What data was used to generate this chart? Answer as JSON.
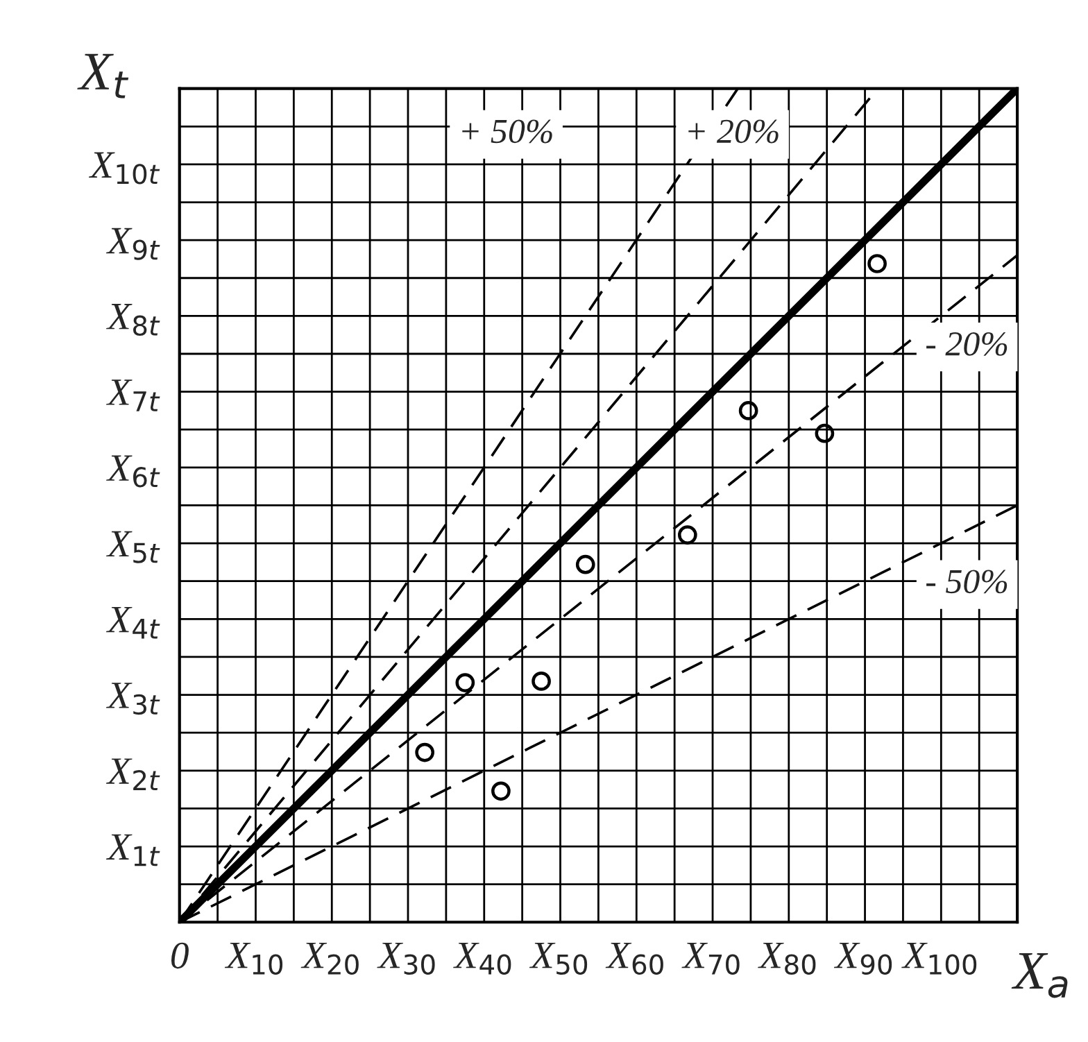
{
  "chart_data": {
    "type": "scatter",
    "xlabel": "X$_{a}$",
    "ylabel": "X$_{t}$",
    "xlim": [
      0,
      110
    ],
    "ylim": [
      0,
      11
    ],
    "xticks": [
      {
        "value": 0,
        "label": "0"
      },
      {
        "value": 5,
        "label": null
      },
      {
        "value": 10,
        "label": "X$_{10}$"
      },
      {
        "value": 15,
        "label": null
      },
      {
        "value": 20,
        "label": "X$_{20}$"
      },
      {
        "value": 25,
        "label": null
      },
      {
        "value": 30,
        "label": "X$_{30}$"
      },
      {
        "value": 35,
        "label": null
      },
      {
        "value": 40,
        "label": "X$_{40}$"
      },
      {
        "value": 45,
        "label": null
      },
      {
        "value": 50,
        "label": "X$_{50}$"
      },
      {
        "value": 55,
        "label": null
      },
      {
        "value": 60,
        "label": "X$_{60}$"
      },
      {
        "value": 65,
        "label": null
      },
      {
        "value": 70,
        "label": "X$_{70}$"
      },
      {
        "value": 75,
        "label": null
      },
      {
        "value": 80,
        "label": "X$_{80}$"
      },
      {
        "value": 85,
        "label": null
      },
      {
        "value": 90,
        "label": "X$_{90}$"
      },
      {
        "value": 95,
        "label": null
      },
      {
        "value": 100,
        "label": "X$_{100}$"
      },
      {
        "value": 105,
        "label": null
      }
    ],
    "yticks": [
      {
        "value": 0.5,
        "label": null
      },
      {
        "value": 1,
        "label": "X$_{1t}$"
      },
      {
        "value": 1.5,
        "label": null
      },
      {
        "value": 2,
        "label": "X$_{2t}$"
      },
      {
        "value": 2.5,
        "label": null
      },
      {
        "value": 3,
        "label": "X$_{3t}$"
      },
      {
        "value": 3.5,
        "label": null
      },
      {
        "value": 4,
        "label": "X$_{4t}$"
      },
      {
        "value": 4.5,
        "label": null
      },
      {
        "value": 5,
        "label": "X$_{5t}$"
      },
      {
        "value": 5.5,
        "label": null
      },
      {
        "value": 6,
        "label": "X$_{6t}$"
      },
      {
        "value": 6.5,
        "label": null
      },
      {
        "value": 7,
        "label": "X$_{7t}$"
      },
      {
        "value": 7.5,
        "label": null
      },
      {
        "value": 8,
        "label": "X$_{8t}$"
      },
      {
        "value": 8.5,
        "label": null
      },
      {
        "value": 9,
        "label": "X$_{9t}$"
      },
      {
        "value": 9.5,
        "label": null
      },
      {
        "value": 10,
        "label": "X$_{10t}$"
      },
      {
        "value": 10.5,
        "label": null
      }
    ],
    "grid": true,
    "legend": false,
    "marker": "circle",
    "series": [
      {
        "color": "#000000",
        "x": [
          32.2,
          37.5,
          42.2,
          47.5,
          53.3,
          66.7,
          74.7,
          84.7,
          91.6
        ],
        "values": [
          2.24,
          3.16,
          1.73,
          3.18,
          4.72,
          5.11,
          6.75,
          6.45,
          8.69
        ]
      },
      {
        "type": "line",
        "marker": "none",
        "line_style": "solid",
        "color": "#000000",
        "x": [
          0,
          110
        ],
        "values": [
          0,
          11
        ]
      },
      {
        "type": "line",
        "marker": "none",
        "line_style": "dashed",
        "color": "#000000",
        "x": [
          0,
          73.3
        ],
        "values": [
          0,
          11
        ]
      },
      {
        "type": "line",
        "marker": "none",
        "line_style": "dashed",
        "color": "#000000",
        "x": [
          0,
          91.7
        ],
        "values": [
          0,
          11
        ]
      },
      {
        "type": "line",
        "marker": "none",
        "line_style": "dashed",
        "color": "#000000",
        "x": [
          0,
          110
        ],
        "values": [
          0,
          8.8
        ]
      },
      {
        "type": "line",
        "marker": "none",
        "line_style": "dashed",
        "color": "#000000",
        "x": [
          0,
          110
        ],
        "values": [
          0,
          5.5
        ]
      }
    ],
    "annotations": [
      "+ 50%",
      "+ 20%",
      "- 20%",
      "- 50%"
    ]
  }
}
